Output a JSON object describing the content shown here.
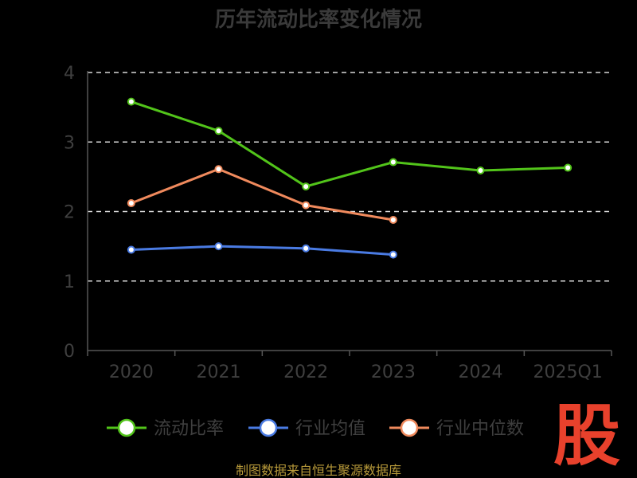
{
  "chart_data": {
    "type": "line",
    "title": "历年流动比率变化情况",
    "categories": [
      "2020",
      "2021",
      "2022",
      "2023",
      "2024",
      "2025Q1"
    ],
    "ylim": [
      0,
      4
    ],
    "yticks": [
      0,
      1,
      2,
      3,
      4
    ],
    "grid": true,
    "legend_position": "bottom",
    "series": [
      {
        "name": "流动比率",
        "color": "#52c41a",
        "values": [
          3.58,
          3.16,
          2.36,
          2.71,
          2.59,
          2.63
        ]
      },
      {
        "name": "行业均值",
        "color": "#4a7be3",
        "values": [
          1.45,
          1.5,
          1.47,
          1.38,
          null,
          null
        ]
      },
      {
        "name": "行业中位数",
        "color": "#f08a5d",
        "values": [
          2.12,
          2.61,
          2.09,
          1.88,
          null,
          null
        ]
      }
    ]
  },
  "footer": "制图数据来自恒生聚源数据库",
  "watermark": "股"
}
